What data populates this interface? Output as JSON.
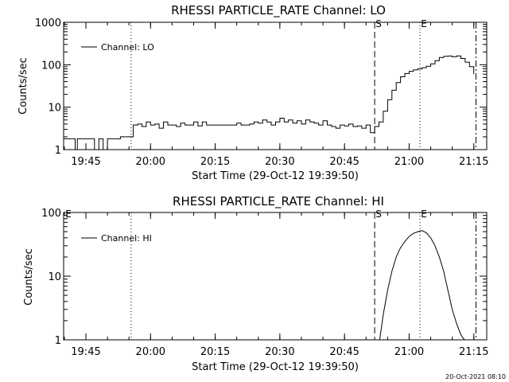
{
  "footer_timestamp": "20-Oct-2021 08:10",
  "chart_data": [
    {
      "type": "line",
      "title": "RHESSI PARTICLE_RATE Channel: LO",
      "xlabel": "Start Time (29-Oct-12 19:39:50)",
      "ylabel": "Counts/sec",
      "yscale": "log",
      "ylim": [
        1,
        1000
      ],
      "xlim": [
        "19:39:50",
        "21:18:00"
      ],
      "xticks": [
        "19:45",
        "20:00",
        "20:15",
        "20:30",
        "20:45",
        "21:00",
        "21:15"
      ],
      "yticks": [
        "1",
        "10",
        "100",
        "1000"
      ],
      "legend": {
        "label": "Channel: LO",
        "position": "top-left"
      },
      "event_markers": [
        {
          "label": "S",
          "time": "20:52:00",
          "style": "dashed"
        },
        {
          "label": "E",
          "time": "21:02:30",
          "style": "dotted"
        },
        {
          "label": "",
          "time": "19:55:30",
          "style": "dotted"
        },
        {
          "label": "",
          "time": "21:15:30",
          "style": "dashdot"
        }
      ],
      "series": [
        {
          "x": [
            "19:39:50",
            "19:42:00",
            "19:42:30",
            "19:43:00",
            "19:44:00",
            "19:45:00",
            "19:46:00",
            "19:47:00",
            "19:48:00",
            "19:48:30",
            "19:49:00",
            "19:50:00",
            "19:50:30",
            "19:51:30",
            "19:52:00",
            "19:53:00",
            "19:54:00",
            "19:55:00",
            "19:56:00",
            "19:57:00",
            "19:58:00",
            "19:59:00",
            "20:00:00",
            "20:01:00",
            "20:02:00",
            "20:03:00",
            "20:04:00",
            "20:05:00",
            "20:06:00",
            "20:07:00",
            "20:08:00",
            "20:09:00",
            "20:10:00",
            "20:11:00",
            "20:12:00",
            "20:13:00",
            "20:14:00",
            "20:15:00",
            "20:16:00",
            "20:17:00",
            "20:18:00",
            "20:19:00",
            "20:20:00",
            "20:21:00",
            "20:22:00",
            "20:23:00",
            "20:24:00",
            "20:25:00",
            "20:26:00",
            "20:27:00",
            "20:28:00",
            "20:29:00",
            "20:30:00",
            "20:31:00",
            "20:32:00",
            "20:33:00",
            "20:34:00",
            "20:35:00",
            "20:36:00",
            "20:37:00",
            "20:38:00",
            "20:39:00",
            "20:40:00",
            "20:41:00",
            "20:42:00",
            "20:43:00",
            "20:44:00",
            "20:45:00",
            "20:46:00",
            "20:47:00",
            "20:48:00",
            "20:49:00",
            "20:50:00",
            "20:51:00",
            "20:52:00",
            "20:53:00",
            "20:54:00",
            "20:55:00",
            "20:56:00",
            "20:57:00",
            "20:58:00",
            "20:59:00",
            "21:00:00",
            "21:01:00",
            "21:02:00",
            "21:03:00",
            "21:04:00",
            "21:05:00",
            "21:06:00",
            "21:07:00",
            "21:08:00",
            "21:09:00",
            "21:10:00",
            "21:11:00",
            "21:12:00",
            "21:13:00",
            "21:14:00",
            "21:15:00"
          ],
          "y": [
            1.8,
            1.8,
            1.0,
            1.8,
            1.8,
            1.8,
            1.8,
            1.0,
            1.8,
            1.8,
            1.0,
            1.8,
            1.8,
            1.8,
            1.8,
            2.0,
            2.0,
            2.0,
            3.8,
            4.0,
            3.5,
            4.5,
            3.8,
            4.0,
            3.2,
            4.5,
            3.8,
            3.8,
            3.5,
            4.2,
            3.8,
            3.8,
            4.5,
            3.6,
            4.5,
            3.8,
            3.8,
            3.8,
            3.8,
            3.8,
            3.8,
            3.8,
            4.2,
            3.8,
            3.8,
            4.0,
            4.5,
            4.2,
            5.0,
            4.5,
            3.8,
            4.5,
            5.5,
            4.5,
            5.0,
            4.2,
            4.8,
            4.0,
            5.0,
            4.5,
            4.2,
            3.8,
            4.8,
            3.8,
            3.5,
            3.2,
            3.8,
            3.6,
            4.0,
            3.5,
            3.6,
            3.2,
            3.8,
            2.5,
            3.5,
            4.5,
            8.0,
            15.0,
            25.0,
            38.0,
            52.0,
            62.0,
            70.0,
            76.0,
            80.0,
            85.0,
            92.0,
            105.0,
            125.0,
            148.0,
            158.0,
            160.0,
            155.0,
            162.0,
            140.0,
            115.0,
            90.0,
            60.0
          ]
        }
      ]
    },
    {
      "type": "line",
      "title": "RHESSI PARTICLE_RATE Channel: HI",
      "xlabel": "Start Time (29-Oct-12 19:39:50)",
      "ylabel": "Counts/sec",
      "yscale": "log",
      "ylim": [
        1,
        100
      ],
      "xlim": [
        "19:39:50",
        "21:18:00"
      ],
      "xticks": [
        "19:45",
        "20:00",
        "20:15",
        "20:30",
        "20:45",
        "21:00",
        "21:15"
      ],
      "yticks": [
        "1",
        "10",
        "100"
      ],
      "legend": {
        "label": "Channel: HI",
        "position": "top-left"
      },
      "event_markers": [
        {
          "label": "E",
          "time": "19:39:50",
          "style": "none"
        },
        {
          "label": "S",
          "time": "20:52:00",
          "style": "dashed"
        },
        {
          "label": "E",
          "time": "21:02:30",
          "style": "dotted"
        },
        {
          "label": "",
          "time": "19:55:30",
          "style": "dotted"
        },
        {
          "label": "",
          "time": "21:15:30",
          "style": "dashdot"
        }
      ],
      "series": [
        {
          "x": [
            "20:53:10",
            "20:54:00",
            "20:55:00",
            "20:56:00",
            "20:57:00",
            "20:58:00",
            "20:59:00",
            "21:00:00",
            "21:01:00",
            "21:02:00",
            "21:03:00",
            "21:04:00",
            "21:05:00",
            "21:06:00",
            "21:07:00",
            "21:08:00",
            "21:09:00",
            "21:10:00",
            "21:11:00",
            "21:12:00",
            "21:12:50"
          ],
          "y": [
            1.0,
            2.5,
            6.0,
            12.0,
            20.0,
            28.0,
            35.0,
            42.0,
            47.0,
            50.0,
            52.0,
            48.0,
            40.0,
            30.0,
            20.0,
            12.0,
            6.0,
            3.0,
            1.8,
            1.2,
            1.0
          ]
        }
      ]
    }
  ]
}
